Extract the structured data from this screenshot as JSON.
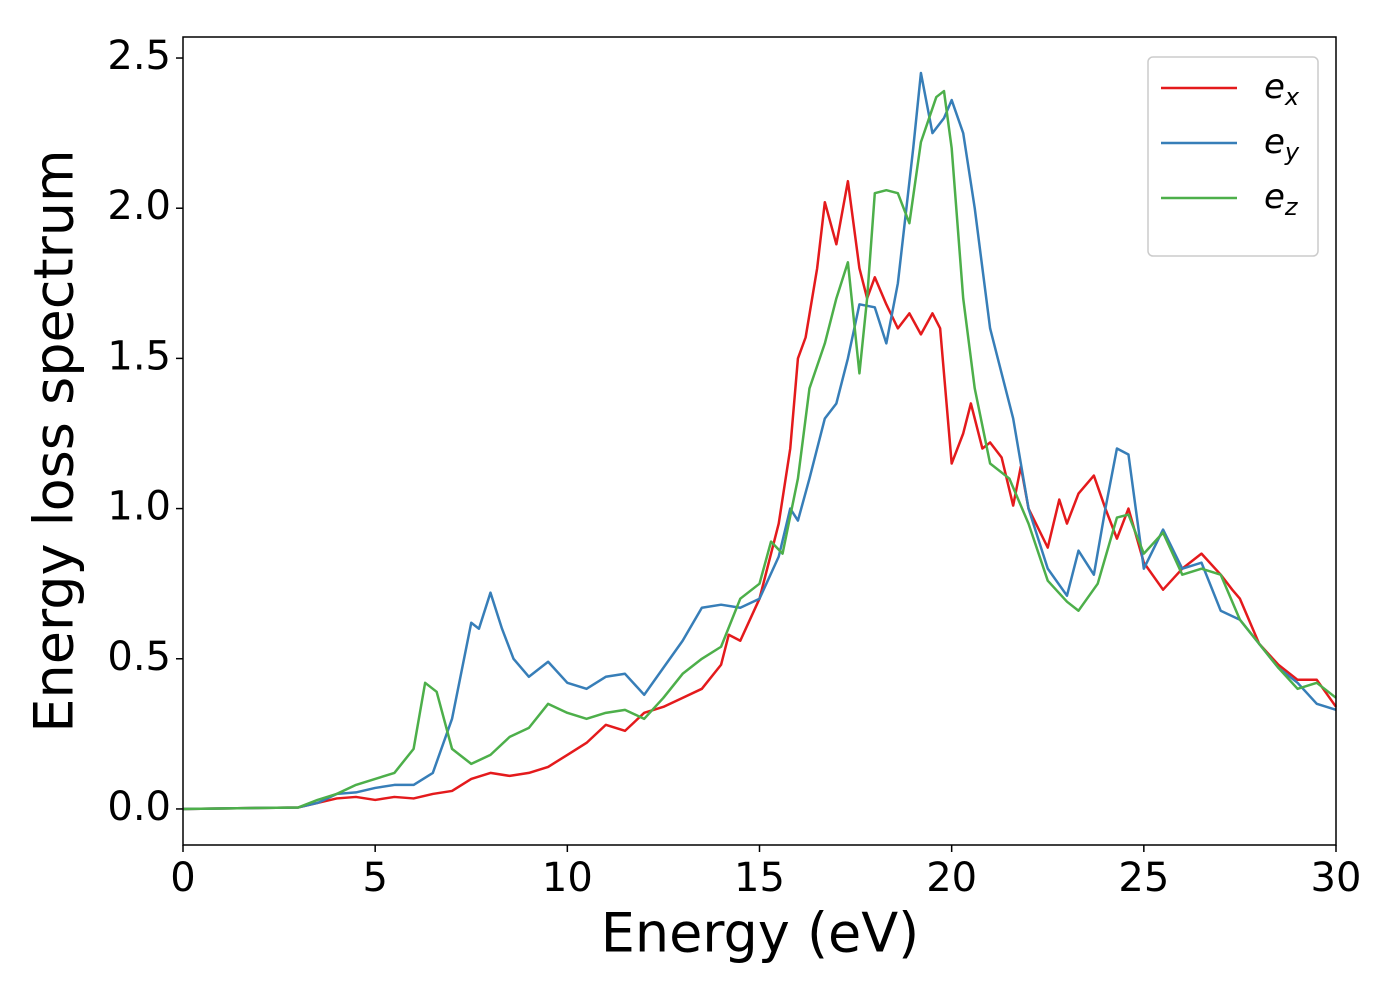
{
  "chart_data": {
    "type": "line",
    "xlabel": "Energy (eV)",
    "ylabel": "Energy loss spectrum",
    "xlim": [
      0,
      30
    ],
    "ylim": [
      -0.12,
      2.57
    ],
    "xticks": [
      0,
      5,
      10,
      15,
      20,
      25,
      30
    ],
    "yticks": [
      {
        "value": 0,
        "label": "0.0"
      },
      0.5,
      {
        "value": 1,
        "label": "1.0"
      },
      1.5,
      {
        "value": 2,
        "label": "2.0"
      },
      2.5
    ],
    "grid": false,
    "legend": "upper right",
    "series": [
      {
        "name": "ex",
        "color": "#e41a1c",
        "x": [
          0,
          3,
          3.5,
          4,
          4.5,
          5,
          5.5,
          6,
          6.5,
          7,
          7.5,
          8,
          8.5,
          9,
          9.5,
          10,
          10.5,
          11,
          11.5,
          12,
          12.5,
          13,
          13.5,
          14,
          14.2,
          14.5,
          15,
          15.5,
          15.8,
          16,
          16.2,
          16.5,
          16.7,
          17,
          17.3,
          17.6,
          17.8,
          18,
          18.3,
          18.6,
          18.9,
          19.2,
          19.5,
          19.7,
          20,
          20.3,
          20.5,
          20.8,
          21,
          21.3,
          21.6,
          21.8,
          22,
          22.5,
          22.8,
          23,
          23.3,
          23.7,
          24,
          24.3,
          24.6,
          25,
          25.5,
          26,
          26.5,
          27,
          27.3,
          27.5,
          28,
          28.5,
          29,
          29.5,
          30
        ],
        "values": [
          0,
          0.005,
          0.02,
          0.035,
          0.04,
          0.03,
          0.04,
          0.035,
          0.05,
          0.06,
          0.1,
          0.12,
          0.11,
          0.12,
          0.14,
          0.18,
          0.22,
          0.28,
          0.26,
          0.32,
          0.34,
          0.37,
          0.4,
          0.48,
          0.58,
          0.56,
          0.7,
          0.95,
          1.2,
          1.5,
          1.57,
          1.8,
          2.02,
          1.88,
          2.09,
          1.8,
          1.7,
          1.77,
          1.68,
          1.6,
          1.65,
          1.58,
          1.65,
          1.6,
          1.15,
          1.25,
          1.35,
          1.2,
          1.22,
          1.17,
          1.01,
          1.14,
          1.0,
          0.87,
          1.03,
          0.95,
          1.05,
          1.11,
          1.0,
          0.9,
          1.0,
          0.82,
          0.73,
          0.8,
          0.85,
          0.78,
          0.73,
          0.7,
          0.55,
          0.48,
          0.43,
          0.43,
          0.34
        ]
      },
      {
        "name": "ey",
        "color": "#377eb8",
        "x": [
          0,
          3,
          3.5,
          4,
          4.5,
          5,
          5.5,
          6,
          6.5,
          7,
          7.5,
          7.7,
          8,
          8.3,
          8.6,
          9,
          9.5,
          10,
          10.5,
          11,
          11.5,
          12,
          12.5,
          13,
          13.5,
          14,
          14.5,
          15,
          15.5,
          15.8,
          16,
          16.3,
          16.7,
          17,
          17.3,
          17.6,
          18,
          18.3,
          18.6,
          19,
          19.2,
          19.5,
          19.8,
          20,
          20.3,
          20.6,
          21,
          21.3,
          21.6,
          22,
          22.5,
          23,
          23.3,
          23.7,
          24,
          24.3,
          24.6,
          25,
          25.5,
          26,
          26.5,
          27,
          27.5,
          28,
          28.5,
          29,
          29.5,
          30
        ],
        "values": [
          0,
          0.005,
          0.02,
          0.05,
          0.055,
          0.07,
          0.08,
          0.08,
          0.12,
          0.3,
          0.62,
          0.6,
          0.72,
          0.6,
          0.5,
          0.44,
          0.49,
          0.42,
          0.4,
          0.44,
          0.45,
          0.38,
          0.47,
          0.56,
          0.67,
          0.68,
          0.67,
          0.7,
          0.84,
          1.0,
          0.96,
          1.1,
          1.3,
          1.35,
          1.5,
          1.68,
          1.67,
          1.55,
          1.75,
          2.2,
          2.45,
          2.25,
          2.3,
          2.36,
          2.25,
          2.0,
          1.6,
          1.45,
          1.3,
          1.0,
          0.8,
          0.71,
          0.86,
          0.78,
          1.0,
          1.2,
          1.18,
          0.8,
          0.93,
          0.8,
          0.82,
          0.66,
          0.63,
          0.55,
          0.47,
          0.42,
          0.35,
          0.33
        ]
      },
      {
        "name": "ez",
        "color": "#4daf4a",
        "x": [
          0,
          3,
          3.5,
          4,
          4.5,
          5,
          5.5,
          6,
          6.3,
          6.6,
          7,
          7.5,
          8,
          8.5,
          9,
          9.5,
          10,
          10.5,
          11,
          11.5,
          12,
          12.5,
          13,
          13.5,
          14,
          14.5,
          15,
          15.3,
          15.6,
          16,
          16.3,
          16.7,
          17,
          17.3,
          17.6,
          17.8,
          18,
          18.3,
          18.6,
          18.9,
          19.2,
          19.6,
          19.8,
          20,
          20.3,
          20.6,
          21,
          21.5,
          22,
          22.5,
          23,
          23.3,
          23.8,
          24.3,
          24.6,
          25,
          25.5,
          26,
          26.5,
          27,
          27.5,
          28,
          28.5,
          29,
          29.5,
          30
        ],
        "values": [
          0,
          0.005,
          0.03,
          0.05,
          0.08,
          0.1,
          0.12,
          0.2,
          0.42,
          0.39,
          0.2,
          0.15,
          0.18,
          0.24,
          0.27,
          0.35,
          0.32,
          0.3,
          0.32,
          0.33,
          0.3,
          0.37,
          0.45,
          0.5,
          0.54,
          0.7,
          0.75,
          0.89,
          0.85,
          1.1,
          1.4,
          1.55,
          1.7,
          1.82,
          1.45,
          1.7,
          2.05,
          2.06,
          2.05,
          1.95,
          2.22,
          2.37,
          2.39,
          2.2,
          1.7,
          1.4,
          1.15,
          1.1,
          0.95,
          0.76,
          0.69,
          0.66,
          0.75,
          0.97,
          0.98,
          0.85,
          0.92,
          0.78,
          0.8,
          0.78,
          0.63,
          0.55,
          0.47,
          0.4,
          0.42,
          0.37
        ]
      }
    ]
  }
}
